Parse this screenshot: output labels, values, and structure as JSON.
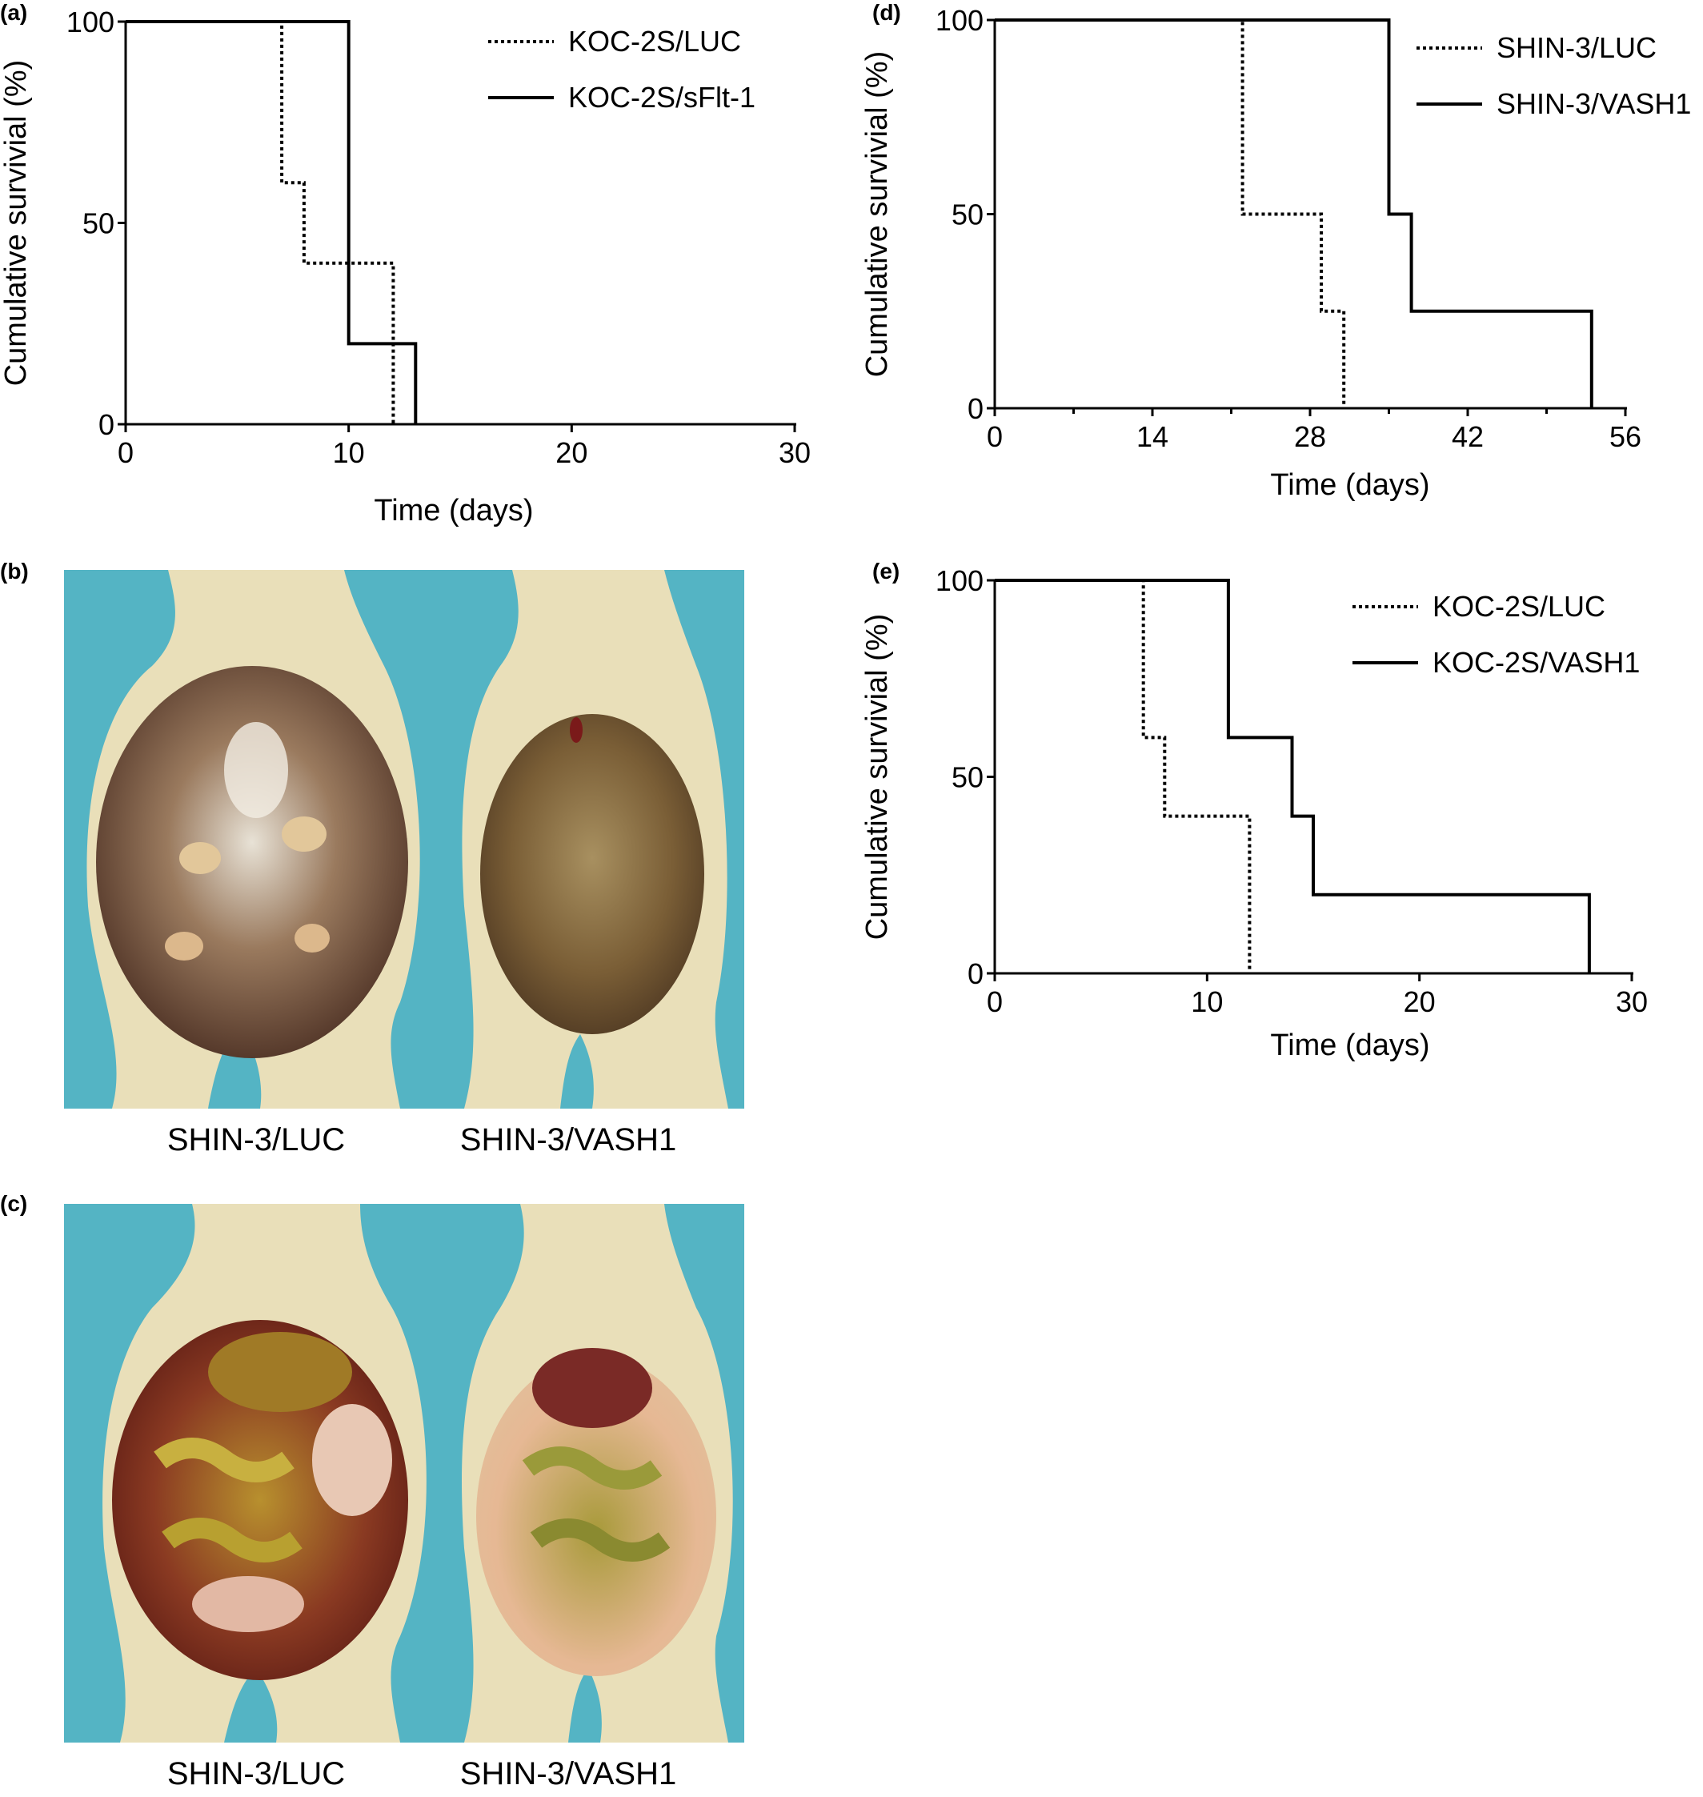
{
  "panels": {
    "a": {
      "letter": "(a)"
    },
    "b": {
      "letter": "(b)",
      "caption_left": "SHIN-3/LUC",
      "caption_right": "SHIN-3/VASH1"
    },
    "c": {
      "letter": "(c)",
      "caption_left": "SHIN-3/LUC",
      "caption_right": "SHIN-3/VASH1"
    },
    "d": {
      "letter": "(d)"
    },
    "e": {
      "letter": "(e)"
    }
  },
  "colors": {
    "line": "#000000",
    "photo_background": "#54b4c4",
    "skin": "#e9dfb9"
  },
  "chart_data": [
    {
      "panel": "a",
      "type": "line",
      "subtype": "kaplan-meier step",
      "xlabel": "Time (days)",
      "ylabel": "Cumulative survivial (%)",
      "xlim": [
        0,
        30
      ],
      "ylim": [
        0,
        100
      ],
      "xticks": [
        0,
        10,
        20,
        30
      ],
      "yticks": [
        0,
        50,
        100
      ],
      "minor_xticks": [],
      "legend_position": "top-right",
      "series": [
        {
          "name": "KOC-2S/LUC",
          "style": "dotted",
          "x": [
            0,
            7,
            7,
            8,
            8,
            12,
            12
          ],
          "y": [
            100,
            100,
            60,
            60,
            40,
            40,
            0
          ]
        },
        {
          "name": "KOC-2S/sFlt-1",
          "style": "solid",
          "x": [
            0,
            10,
            10,
            13,
            13
          ],
          "y": [
            100,
            100,
            20,
            20,
            0
          ]
        }
      ]
    },
    {
      "panel": "d",
      "type": "line",
      "subtype": "kaplan-meier step",
      "xlabel": "Time (days)",
      "ylabel": "Cumulative survivial (%)",
      "xlim": [
        0,
        56
      ],
      "ylim": [
        0,
        100
      ],
      "xticks": [
        0,
        14,
        28,
        42,
        56
      ],
      "yticks": [
        0,
        50,
        100
      ],
      "minor_xticks": [
        7,
        21,
        35,
        49
      ],
      "legend_position": "top-right",
      "series": [
        {
          "name": "SHIN-3/LUC",
          "style": "dotted",
          "x": [
            0,
            22,
            22,
            29,
            29,
            31,
            31
          ],
          "y": [
            100,
            100,
            50,
            50,
            25,
            25,
            0
          ]
        },
        {
          "name": "SHIN-3/VASH1",
          "style": "solid",
          "x": [
            0,
            35,
            35,
            37,
            37,
            53,
            53
          ],
          "y": [
            100,
            100,
            50,
            50,
            25,
            25,
            0
          ]
        }
      ]
    },
    {
      "panel": "e",
      "type": "line",
      "subtype": "kaplan-meier step",
      "xlabel": "Time (days)",
      "ylabel": "Cumulative survivial (%)",
      "xlim": [
        0,
        30
      ],
      "ylim": [
        0,
        100
      ],
      "xticks": [
        0,
        10,
        20,
        30
      ],
      "yticks": [
        0,
        50,
        100
      ],
      "minor_xticks": [],
      "legend_position": "top-right",
      "series": [
        {
          "name": "KOC-2S/LUC",
          "style": "dotted",
          "x": [
            0,
            7,
            7,
            8,
            8,
            12,
            12
          ],
          "y": [
            100,
            100,
            60,
            60,
            40,
            40,
            0
          ]
        },
        {
          "name": "KOC-2S/VASH1",
          "style": "solid",
          "x": [
            0,
            11,
            11,
            14,
            14,
            15,
            15,
            28,
            28
          ],
          "y": [
            100,
            100,
            60,
            60,
            40,
            40,
            20,
            20,
            0
          ]
        }
      ]
    }
  ]
}
